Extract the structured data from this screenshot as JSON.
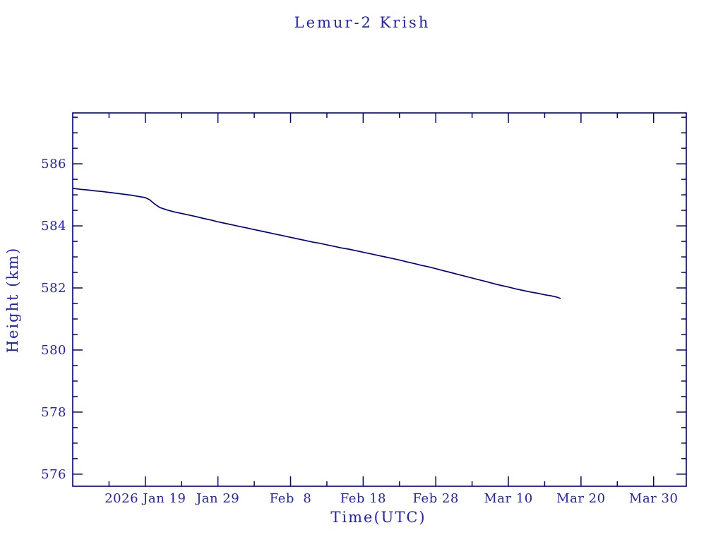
{
  "page": {
    "background_color": "#ffffff"
  },
  "chart_data": {
    "type": "line",
    "title": "Lemur-2 Krish",
    "xlabel": "Time(UTC)",
    "ylabel": "Height (km)",
    "text_color": "#2222bb",
    "axis_color": "#000088",
    "line_color": "#00008b",
    "grid": "off",
    "legend": "none",
    "x_axis": {
      "unit": "days since 2026 Jan 9",
      "range_days": [
        0,
        84.5
      ],
      "major_ticks": [
        {
          "day": 10,
          "label": "2026 Jan 19"
        },
        {
          "day": 20,
          "label": "Jan 29"
        },
        {
          "day": 30,
          "label": "Feb  8"
        },
        {
          "day": 40,
          "label": "Feb 18"
        },
        {
          "day": 50,
          "label": "Feb 28"
        },
        {
          "day": 60,
          "label": "Mar 10"
        },
        {
          "day": 70,
          "label": "Mar 20"
        },
        {
          "day": 80,
          "label": "Mar 30"
        }
      ],
      "minor_tick_days": [
        5,
        15,
        25,
        35,
        45,
        55,
        65,
        75
      ]
    },
    "y_axis": {
      "range_km": [
        575.61,
        587.64
      ],
      "major_ticks": [
        576,
        578,
        580,
        582,
        584,
        586
      ],
      "minor_step": 0.5
    },
    "series": [
      {
        "name": "Lemur-2 Krish height",
        "color": "#00008b",
        "points_day_km": [
          [
            0,
            585.21
          ],
          [
            1,
            585.18
          ],
          [
            2,
            585.16
          ],
          [
            3,
            585.13
          ],
          [
            4,
            585.11
          ],
          [
            5,
            585.08
          ],
          [
            6,
            585.05
          ],
          [
            7,
            585.02
          ],
          [
            8,
            584.99
          ],
          [
            9,
            584.95
          ],
          [
            10,
            584.91
          ],
          [
            10.6,
            584.84
          ],
          [
            11.2,
            584.72
          ],
          [
            12,
            584.59
          ],
          [
            13,
            584.51
          ],
          [
            14,
            584.45
          ],
          [
            15,
            584.4
          ],
          [
            16,
            584.35
          ],
          [
            17,
            584.3
          ],
          [
            18,
            584.24
          ],
          [
            19,
            584.19
          ],
          [
            20,
            584.13
          ],
          [
            21,
            584.08
          ],
          [
            22,
            584.03
          ],
          [
            23,
            583.98
          ],
          [
            24,
            583.93
          ],
          [
            25,
            583.88
          ],
          [
            26,
            583.83
          ],
          [
            27,
            583.78
          ],
          [
            28,
            583.73
          ],
          [
            29,
            583.68
          ],
          [
            30,
            583.63
          ],
          [
            31,
            583.58
          ],
          [
            32,
            583.53
          ],
          [
            33,
            583.48
          ],
          [
            34,
            583.44
          ],
          [
            35,
            583.39
          ],
          [
            36,
            583.34
          ],
          [
            37,
            583.29
          ],
          [
            38,
            583.25
          ],
          [
            39,
            583.2
          ],
          [
            40,
            583.15
          ],
          [
            41,
            583.1
          ],
          [
            42,
            583.05
          ],
          [
            43,
            583.0
          ],
          [
            44,
            582.95
          ],
          [
            45,
            582.9
          ],
          [
            46,
            582.84
          ],
          [
            47,
            582.79
          ],
          [
            48,
            582.73
          ],
          [
            49,
            582.68
          ],
          [
            50,
            582.62
          ],
          [
            51,
            582.56
          ],
          [
            52,
            582.5
          ],
          [
            53,
            582.44
          ],
          [
            54,
            582.38
          ],
          [
            55,
            582.32
          ],
          [
            56,
            582.26
          ],
          [
            57,
            582.2
          ],
          [
            58,
            582.14
          ],
          [
            59,
            582.08
          ],
          [
            60,
            582.03
          ],
          [
            61,
            581.97
          ],
          [
            62,
            581.92
          ],
          [
            63,
            581.87
          ],
          [
            64,
            581.83
          ],
          [
            65,
            581.78
          ],
          [
            66,
            581.74
          ],
          [
            66.6,
            581.71
          ],
          [
            67.2,
            581.66
          ]
        ]
      }
    ]
  }
}
